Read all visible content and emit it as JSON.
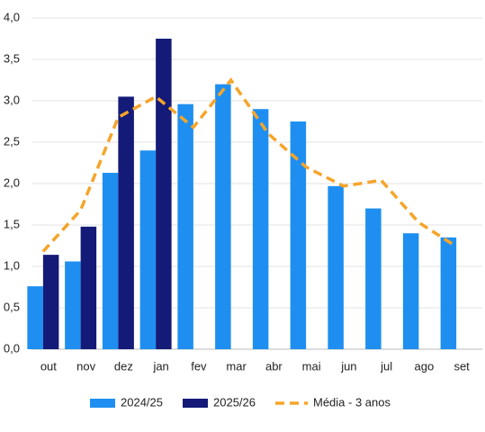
{
  "chart_data": {
    "type": "bar",
    "categories": [
      "out",
      "nov",
      "dez",
      "jan",
      "fev",
      "mar",
      "abr",
      "mai",
      "jun",
      "jul",
      "ago",
      "set"
    ],
    "series": [
      {
        "name": "2024/25",
        "color": "#1e8ff0",
        "values": [
          0.76,
          1.06,
          2.13,
          2.4,
          2.96,
          3.2,
          2.9,
          2.75,
          1.97,
          1.7,
          1.4,
          1.35
        ]
      },
      {
        "name": "2025/26",
        "color": "#141a78",
        "values": [
          1.14,
          1.48,
          3.05,
          3.75,
          null,
          null,
          null,
          null,
          null,
          null,
          null,
          null
        ]
      },
      {
        "name": "Média - 3 anos",
        "type": "line",
        "dashed": true,
        "color": "#f5a52a",
        "values": [
          1.18,
          1.68,
          2.8,
          3.05,
          2.68,
          3.25,
          2.6,
          2.2,
          1.97,
          2.04,
          1.53,
          1.24
        ]
      }
    ],
    "ylim": [
      0,
      4
    ],
    "yticks": [
      {
        "value": 0,
        "label": "0,0"
      },
      {
        "value": 0.5,
        "label": "0,5"
      },
      {
        "value": 1,
        "label": "1,0"
      },
      {
        "value": 1.5,
        "label": "1,5"
      },
      {
        "value": 2,
        "label": "2,0"
      },
      {
        "value": 2.5,
        "label": "2,5"
      },
      {
        "value": 3,
        "label": "3,0"
      },
      {
        "value": 3.5,
        "label": "3,5"
      },
      {
        "value": 4,
        "label": "4,0"
      }
    ],
    "grid": true,
    "legend": "bottom"
  }
}
